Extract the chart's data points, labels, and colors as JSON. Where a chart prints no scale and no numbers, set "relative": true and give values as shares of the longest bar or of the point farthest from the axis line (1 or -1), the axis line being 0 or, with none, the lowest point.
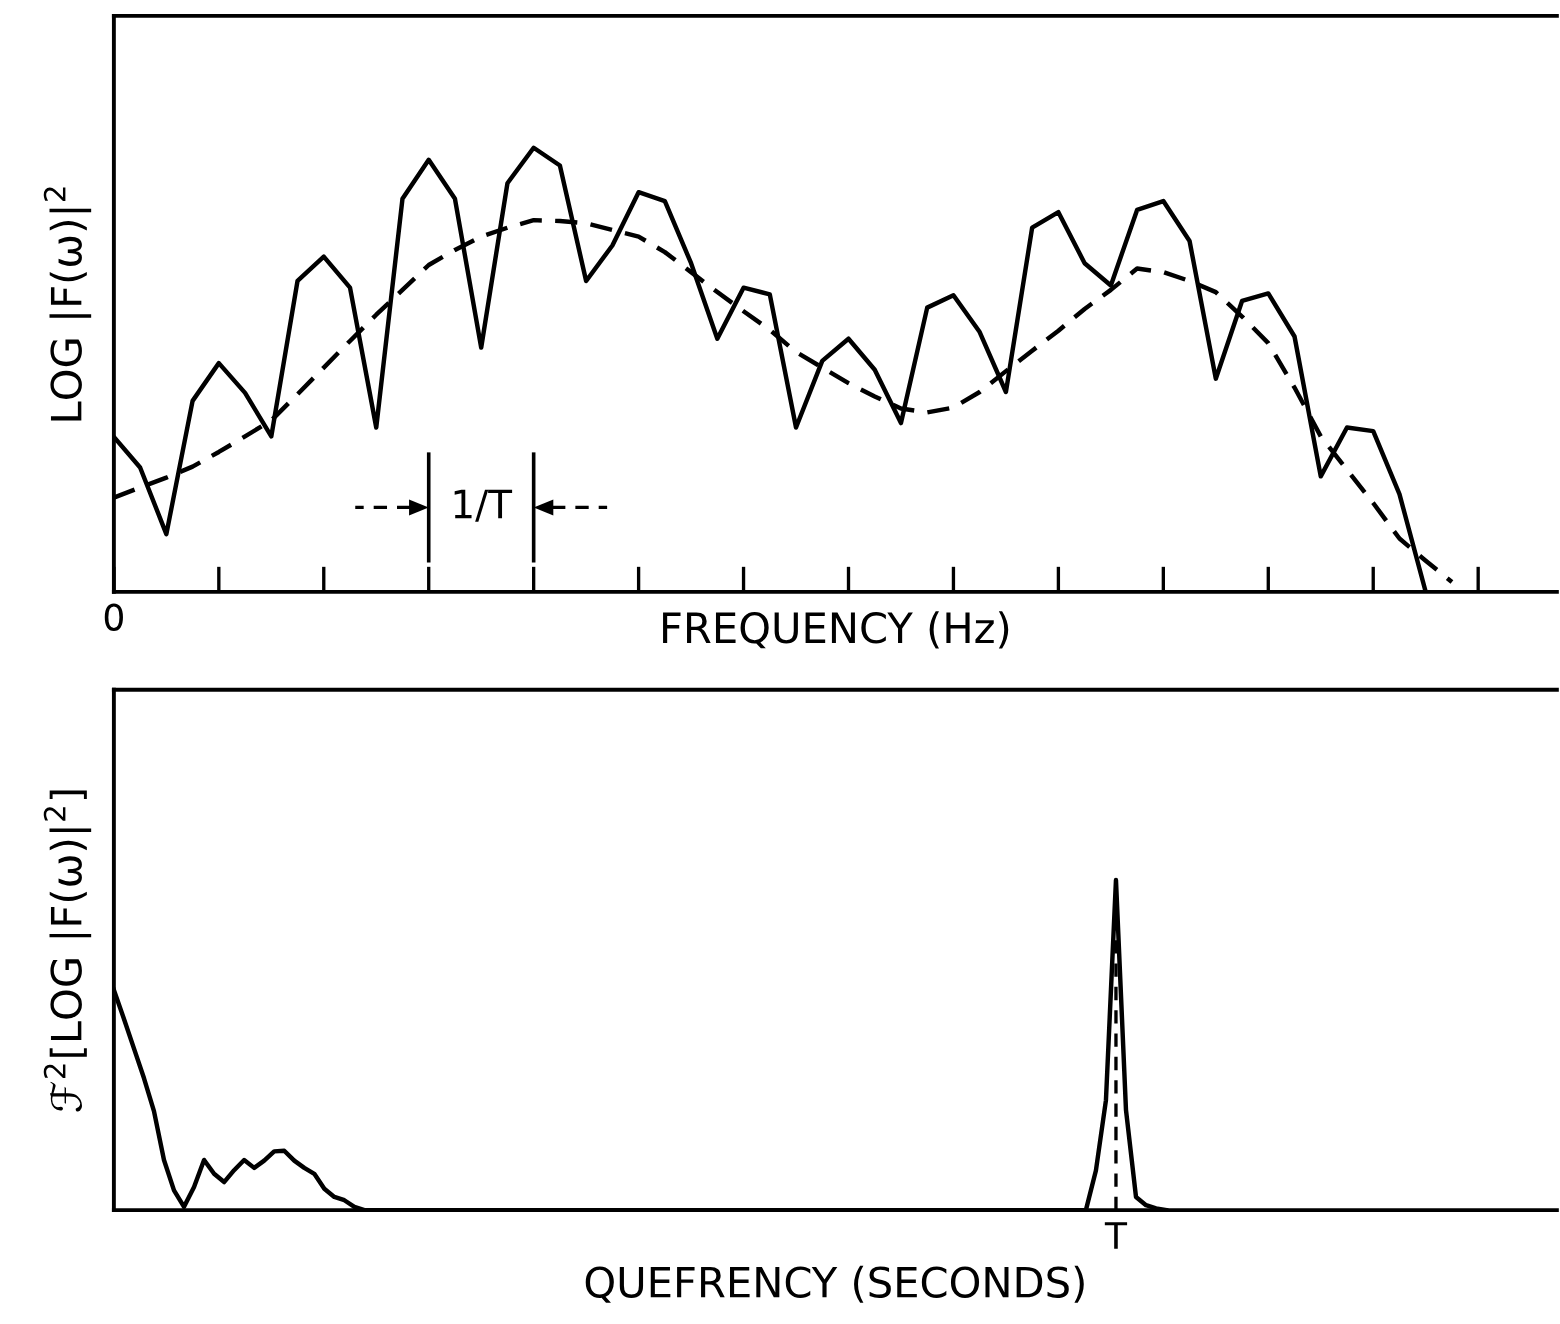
{
  "chart_data": [
    {
      "type": "line",
      "xlabel": "FREQUENCY (Hz)",
      "ylabel": "LOG |F(ω)|$^{2}$",
      "relative": true,
      "categories": [
        null,
        null,
        null,
        null,
        null,
        null,
        null,
        null,
        null,
        null,
        null,
        null,
        null,
        null,
        null,
        null,
        null,
        null,
        null,
        null,
        null,
        null,
        null,
        null,
        null,
        null,
        null,
        null,
        null,
        null,
        null,
        null,
        null,
        null,
        null,
        null,
        null,
        null,
        null,
        null,
        null,
        null,
        null,
        null,
        null,
        null,
        null,
        null,
        null,
        null,
        null,
        null,
        null,
        null,
        null,
        null
      ],
      "series": [
        {
          "color": "#000000",
          "line_style": "solid",
          "values": [
            0.349,
            0.28,
            0.13,
            0.43,
            0.515,
            0.448,
            0.35,
            0.7,
            0.755,
            0.685,
            0.37,
            0.885,
            0.973,
            0.885,
            0.55,
            0.92,
            1.0,
            0.96,
            0.7,
            0.78,
            0.9,
            0.88,
            0.74,
            0.57,
            0.685,
            0.67,
            0.37,
            0.52,
            0.57,
            0.5,
            0.38,
            0.64,
            0.668,
            0.585,
            0.45,
            0.82,
            0.855,
            0.74,
            0.69,
            0.86,
            0.88,
            0.79,
            0.48,
            0.655,
            0.672,
            0.575,
            0.26,
            0.37,
            0.362,
            0.22,
            0.0,
            null,
            null,
            null,
            null,
            null
          ]
        },
        {
          "color": "#000000",
          "line_style": "dashed",
          "values": [
            0.212,
            0.235,
            0.257,
            0.282,
            0.315,
            0.35,
            0.386,
            0.445,
            0.505,
            0.565,
            0.624,
            0.68,
            0.736,
            0.77,
            0.8,
            0.82,
            0.837,
            0.835,
            0.83,
            0.815,
            0.8,
            0.765,
            0.72,
            0.675,
            0.632,
            0.59,
            0.54,
            0.505,
            0.47,
            0.44,
            0.413,
            0.404,
            0.415,
            0.45,
            0.497,
            0.543,
            0.588,
            0.637,
            0.68,
            0.728,
            0.72,
            0.7,
            0.675,
            0.62,
            0.56,
            0.46,
            0.35,
            0.275,
            0.2,
            0.12,
            0.07,
            0.022,
            null,
            null,
            null,
            null
          ]
        }
      ],
      "annotations": [
        "1/T",
        "0"
      ]
    },
    {
      "type": "line",
      "xlabel": "QUEFRENCY (SECONDS)",
      "ylabel": "ℱ$^{2}$[LOG |F(ω)|$^{2}$]",
      "relative": true,
      "categories": [
        null,
        null,
        null,
        null,
        null,
        null,
        null,
        null,
        null,
        null,
        null,
        null,
        null,
        null,
        null,
        null,
        null,
        null,
        null,
        null,
        null,
        null,
        null,
        null,
        null,
        null,
        null,
        null,
        null,
        null,
        null,
        null,
        null,
        null,
        null,
        null,
        null,
        null,
        null,
        null,
        null,
        null,
        null,
        null,
        null,
        null,
        null,
        null,
        null,
        null,
        null,
        null,
        null,
        null,
        null,
        null,
        null,
        null,
        null,
        null,
        null,
        null,
        null,
        null,
        null,
        null,
        null,
        null,
        null,
        null,
        null,
        null,
        null,
        null,
        null,
        null,
        null,
        null,
        null,
        null,
        null,
        null,
        null,
        null,
        null,
        null,
        null,
        null,
        null,
        null,
        null,
        null,
        null,
        null,
        null,
        null,
        null,
        null,
        null,
        null,
        null,
        null,
        null,
        null,
        null,
        null,
        null,
        null,
        null,
        null,
        null,
        null,
        null,
        null,
        null,
        null,
        null,
        null,
        null,
        null,
        null,
        null,
        null,
        null,
        null,
        null,
        null,
        null,
        null,
        null,
        null,
        null,
        null,
        null,
        null,
        null,
        null,
        null,
        null,
        null,
        null,
        null,
        null,
        null,
        null
      ],
      "series": [
        {
          "color": "#000000",
          "line_style": "solid",
          "values": [
            0.667,
            0.58,
            0.49,
            0.4,
            0.3,
            0.152,
            0.06,
            0.01,
            0.07,
            0.152,
            0.11,
            0.085,
            0.121,
            0.152,
            0.128,
            0.15,
            0.178,
            0.18,
            0.15,
            0.128,
            0.11,
            0.065,
            0.04,
            0.03,
            0.01,
            0,
            0,
            0,
            0,
            0,
            0,
            0,
            0,
            0,
            0,
            0,
            0,
            0,
            0,
            0,
            0,
            0,
            0,
            0,
            0,
            0,
            0,
            0,
            0,
            0,
            0,
            0,
            0,
            0,
            0,
            0,
            0,
            0,
            0,
            0,
            0,
            0,
            0,
            0,
            0,
            0,
            0,
            0,
            0,
            0,
            0,
            0,
            0,
            0,
            0,
            0,
            0,
            0,
            0,
            0,
            0,
            0,
            0,
            0,
            0,
            0,
            0,
            0,
            0,
            0,
            0,
            0,
            0,
            0,
            0,
            0,
            0,
            0,
            0.12,
            0.333,
            1.0,
            0.303,
            0.04,
            0.015,
            0.005,
            0,
            null,
            null,
            null,
            null,
            null,
            null,
            null,
            null,
            null,
            null,
            null,
            null,
            null,
            null,
            null,
            null,
            null,
            null,
            null,
            null,
            null,
            null,
            null,
            null,
            null,
            null,
            null,
            null,
            null,
            null,
            null,
            null,
            null,
            null,
            null,
            null,
            null,
            null,
            null
          ]
        }
      ],
      "annotations": [
        "T"
      ]
    }
  ]
}
